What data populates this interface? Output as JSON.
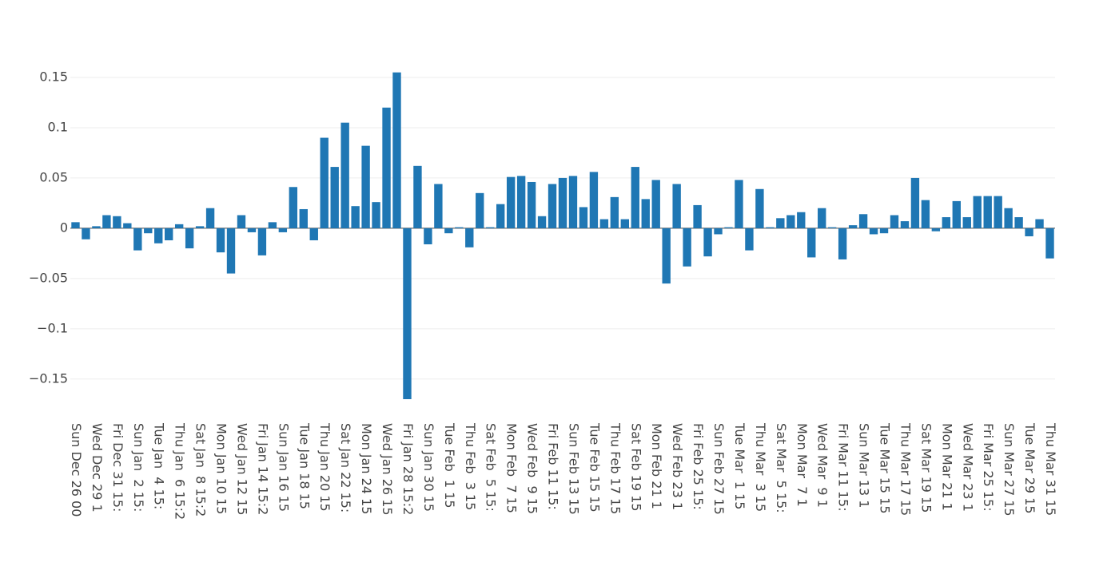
{
  "chart_data": {
    "type": "bar",
    "color": "#1f77b4",
    "grid": true,
    "ylim": [
      -0.17,
      0.16
    ],
    "yticks": [
      {
        "value": -0.15,
        "label": "−0.15"
      },
      {
        "value": -0.1,
        "label": "−0.1"
      },
      {
        "value": -0.05,
        "label": "−0.05"
      },
      0,
      0.05,
      0.1,
      0.15
    ],
    "categories": [
      "Sun Dec 26 00",
      null,
      "Wed Dec 29 1",
      null,
      "Fri Dec 31 15:",
      null,
      "Sun Jan  2 15:",
      null,
      "Tue Jan  4 15:",
      null,
      "Thu Jan  6 15:2",
      null,
      "Sat Jan  8 15:2",
      null,
      "Mon Jan 10 15",
      null,
      "Wed Jan 12 15",
      null,
      "Fri Jan 14 15:2",
      null,
      "Sun Jan 16 15",
      null,
      "Tue Jan 18 15",
      null,
      "Thu Jan 20 15",
      null,
      "Sat Jan 22 15:",
      null,
      "Mon Jan 24 15",
      null,
      "Wed Jan 26 15",
      null,
      "Fri Jan 28 15:2",
      null,
      "Sun Jan 30 15",
      null,
      "Tue Feb  1 15",
      null,
      "Thu Feb  3 15",
      null,
      "Sat Feb  5 15:",
      null,
      "Mon Feb  7 15",
      null,
      "Wed Feb  9 15",
      null,
      "Fri Feb 11 15:",
      null,
      "Sun Feb 13 15",
      null,
      "Tue Feb 15 15",
      null,
      "Thu Feb 17 15",
      null,
      "Sat Feb 19 15",
      null,
      "Mon Feb 21 1",
      null,
      "Wed Feb 23 1",
      null,
      "Fri Feb 25 15:",
      null,
      "Sun Feb 27 15",
      null,
      "Tue Mar  1 15",
      null,
      "Thu Mar  3 15",
      null,
      "Sat Mar  5 15:",
      null,
      "Mon Mar  7 1",
      null,
      "Wed Mar  9 1",
      null,
      "Fri Mar 11 15:",
      null,
      "Sun Mar 13 1",
      null,
      "Tue Mar 15 15",
      null,
      "Thu Mar 17 15",
      null,
      "Sat Mar 19 15",
      null,
      "Mon Mar 21 1",
      null,
      "Wed Mar 23 1",
      null,
      "Fri Mar 25 15:",
      null,
      "Sun Mar 27 15",
      null,
      "Tue Mar 29 15",
      null,
      "Thu Mar 31 15"
    ],
    "values": [
      0.006,
      -0.011,
      0.002,
      0.013,
      0.012,
      0.005,
      -0.022,
      -0.005,
      -0.015,
      -0.012,
      0.004,
      -0.02,
      0.002,
      0.02,
      -0.024,
      -0.045,
      0.013,
      -0.004,
      -0.027,
      0.006,
      -0.004,
      0.041,
      0.019,
      -0.012,
      0.09,
      0.061,
      0.105,
      0.022,
      0.082,
      0.026,
      0.12,
      0.155,
      -0.17,
      0.062,
      -0.016,
      0.044,
      -0.005,
      0.001,
      -0.019,
      0.035,
      0.001,
      0.024,
      0.051,
      0.052,
      0.046,
      0.012,
      0.044,
      0.05,
      0.052,
      0.021,
      0.056,
      0.009,
      0.031,
      0.009,
      0.061,
      0.029,
      0.048,
      -0.055,
      0.044,
      -0.038,
      0.023,
      -0.028,
      -0.006,
      0.001,
      0.048,
      -0.022,
      0.039,
      0.001,
      0.01,
      0.013,
      0.016,
      -0.029,
      0.02,
      0.001,
      -0.031,
      0.003,
      0.014,
      -0.006,
      -0.005,
      0.013,
      0.007,
      0.05,
      0.028,
      -0.003,
      0.011,
      0.027,
      0.011,
      0.032,
      0.032,
      0.032,
      0.02,
      0.011,
      -0.008,
      0.009,
      -0.03
    ]
  }
}
